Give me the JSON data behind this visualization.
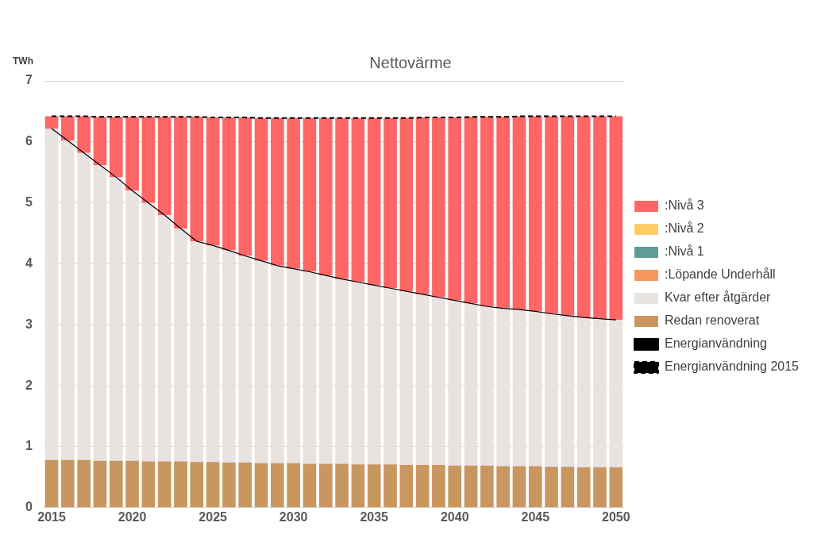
{
  "chart_data": {
    "type": "bar",
    "title": "Nettovärme",
    "ylabel": "TWh",
    "stacked": true,
    "legend": "right",
    "grid": "y",
    "marker": "none",
    "categories": [
      "2015",
      null,
      null,
      null,
      null,
      "2020",
      null,
      null,
      null,
      null,
      "2025",
      null,
      null,
      null,
      null,
      "2030",
      null,
      null,
      null,
      null,
      "2035",
      null,
      null,
      null,
      null,
      "2040",
      null,
      null,
      null,
      null,
      "2045",
      null,
      null,
      null,
      null,
      "2050"
    ],
    "ylim": [
      0,
      7
    ],
    "yticks": [
      0,
      1,
      2,
      3,
      4,
      5,
      6,
      7
    ],
    "series": [
      {
        "name": "Redan renoverat",
        "color": "#c8965f",
        "values": [
          0.78,
          0.78,
          0.78,
          0.77,
          0.77,
          0.77,
          0.76,
          0.76,
          0.76,
          0.75,
          0.75,
          0.74,
          0.74,
          0.73,
          0.73,
          0.73,
          0.72,
          0.72,
          0.72,
          0.71,
          0.71,
          0.71,
          0.7,
          0.7,
          0.7,
          0.69,
          0.69,
          0.69,
          0.68,
          0.68,
          0.68,
          0.67,
          0.67,
          0.66,
          0.66,
          0.66
        ]
      },
      {
        "name": "Kvar efter åtgärder",
        "color": "#e8e2e0",
        "values": [
          5.44,
          5.24,
          5.04,
          4.85,
          4.65,
          4.43,
          4.24,
          4.04,
          3.82,
          3.62,
          3.55,
          3.48,
          3.39,
          3.32,
          3.24,
          3.19,
          3.15,
          3.09,
          3.03,
          2.99,
          2.94,
          2.89,
          2.85,
          2.8,
          2.75,
          2.71,
          2.66,
          2.61,
          2.59,
          2.57,
          2.54,
          2.51,
          2.48,
          2.46,
          2.44,
          2.42
        ]
      },
      {
        "name": ":Löpande Underhåll",
        "color": "#f7975f",
        "values": [
          0,
          0,
          0,
          0,
          0,
          0,
          0,
          0,
          0,
          0,
          0,
          0,
          0,
          0,
          0,
          0,
          0,
          0,
          0,
          0,
          0,
          0,
          0,
          0,
          0,
          0,
          0,
          0,
          0,
          0,
          0,
          0,
          0,
          0,
          0,
          0
        ]
      },
      {
        "name": ":Nivå 1",
        "color": "#5f9b97",
        "values": [
          0,
          0,
          0,
          0,
          0,
          0,
          0,
          0,
          0,
          0,
          0,
          0,
          0,
          0,
          0,
          0,
          0,
          0,
          0,
          0,
          0,
          0,
          0,
          0,
          0,
          0,
          0,
          0,
          0,
          0,
          0,
          0,
          0,
          0,
          0,
          0
        ]
      },
      {
        "name": ":Nivå 2",
        "color": "#ffcc66",
        "values": [
          0,
          0,
          0,
          0,
          0,
          0,
          0,
          0,
          0,
          0,
          0,
          0,
          0,
          0,
          0,
          0,
          0,
          0,
          0,
          0,
          0,
          0,
          0,
          0,
          0,
          0,
          0,
          0,
          0,
          0,
          0,
          0,
          0,
          0,
          0,
          0
        ]
      },
      {
        "name": ":Nivå 3",
        "color": "#ff6666",
        "values": [
          0.2,
          0.4,
          0.6,
          0.79,
          0.99,
          1.21,
          1.41,
          1.61,
          1.83,
          2.04,
          2.1,
          2.18,
          2.27,
          2.34,
          2.42,
          2.47,
          2.52,
          2.58,
          2.64,
          2.69,
          2.74,
          2.79,
          2.84,
          2.9,
          2.95,
          3.0,
          3.06,
          3.11,
          3.14,
          3.17,
          3.2,
          3.24,
          3.27,
          3.3,
          3.32,
          3.34
        ]
      },
      {
        "name": "Energianvändning",
        "type": "line",
        "line_style": "solid",
        "color": "#000000",
        "values": [
          6.22,
          6.02,
          5.82,
          5.62,
          5.42,
          5.2,
          5.0,
          4.8,
          4.58,
          4.37,
          4.3,
          4.22,
          4.13,
          4.05,
          3.97,
          3.92,
          3.87,
          3.81,
          3.75,
          3.7,
          3.65,
          3.6,
          3.55,
          3.5,
          3.45,
          3.4,
          3.35,
          3.3,
          3.27,
          3.25,
          3.22,
          3.18,
          3.15,
          3.12,
          3.1,
          3.08
        ]
      },
      {
        "name": "Energianvändning 2015",
        "type": "line",
        "line_style": "dashed",
        "color": "#000000",
        "values": [
          6.42,
          6.42,
          6.42,
          6.41,
          6.41,
          6.41,
          6.41,
          6.41,
          6.41,
          6.41,
          6.4,
          6.4,
          6.4,
          6.39,
          6.39,
          6.39,
          6.39,
          6.39,
          6.39,
          6.39,
          6.39,
          6.39,
          6.39,
          6.4,
          6.4,
          6.4,
          6.41,
          6.41,
          6.41,
          6.42,
          6.42,
          6.42,
          6.42,
          6.42,
          6.42,
          6.42
        ]
      }
    ]
  }
}
